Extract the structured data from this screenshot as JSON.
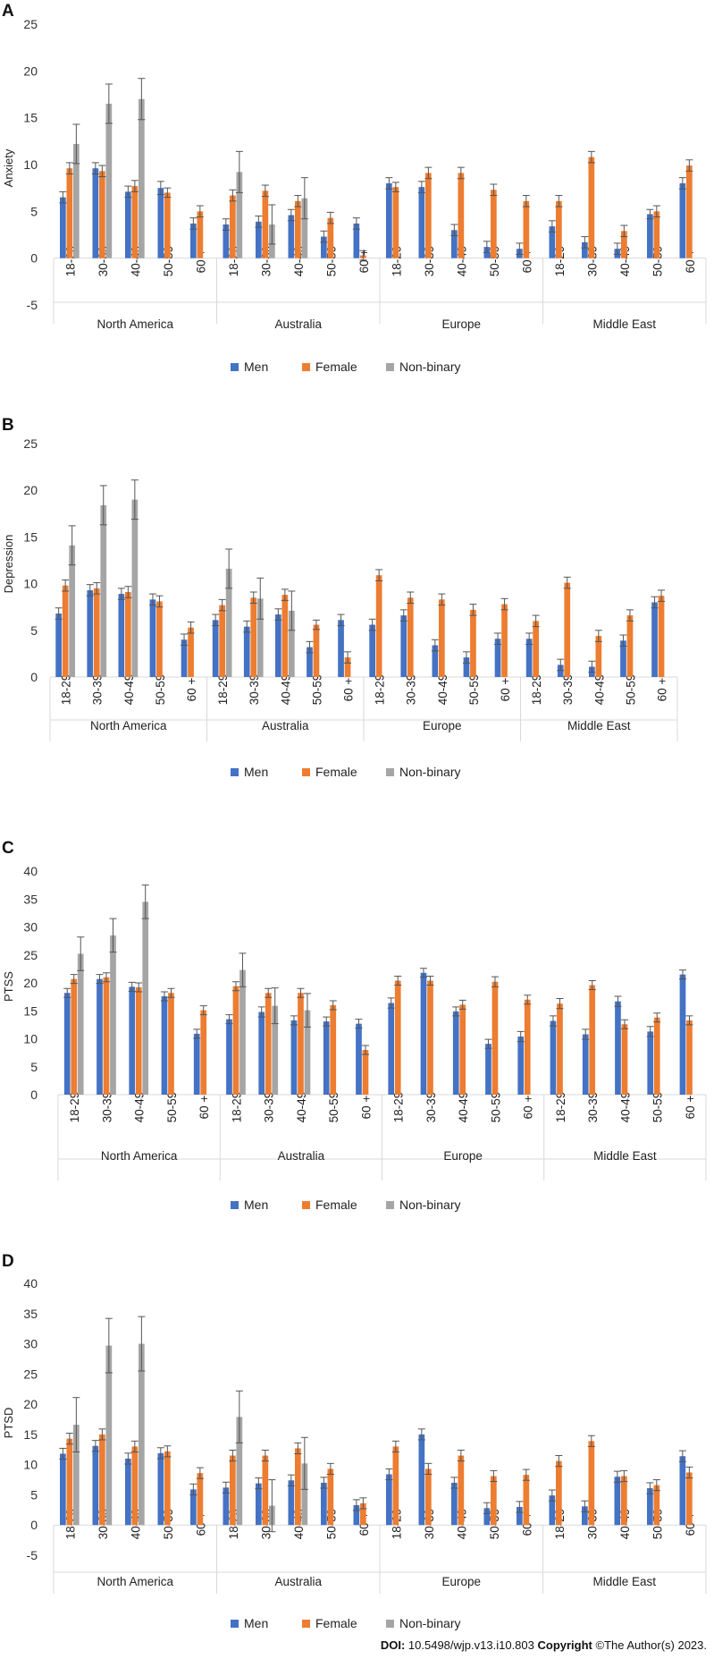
{
  "colors": {
    "Men": "#4472C4",
    "Female": "#ED7D31",
    "Non-binary": "#A5A5A5"
  },
  "footer": {
    "doi_label": "DOI:",
    "doi": "10.5498/wjp.v13.i10.803",
    "copyright_label": "Copyright",
    "copyright": "©The Author(s) 2023."
  },
  "chart_data": [
    {
      "panel": "A",
      "type": "bar",
      "ylabel": "Anxiety",
      "ylim": [
        -5,
        25
      ],
      "yticks": [
        -5,
        0,
        5,
        10,
        15,
        20,
        25
      ],
      "groups": [
        "North America",
        "Australia",
        "Europe",
        "Middle East"
      ],
      "categories": [
        "18-29",
        "30-39",
        "40-49",
        "50-59",
        "60 +"
      ],
      "legend": [
        "Men",
        "Female",
        "Non-binary"
      ],
      "series": [
        {
          "name": "Men",
          "values": [
            [
              6.5,
              9.6,
              7.1,
              7.5,
              3.7
            ],
            [
              3.6,
              3.9,
              4.6,
              2.3,
              3.7
            ],
            [
              8.0,
              7.6,
              3.0,
              1.2,
              1.0
            ],
            [
              3.4,
              1.7,
              1.0,
              4.7,
              8.0
            ]
          ],
          "errors": [
            [
              0.6,
              0.6,
              0.6,
              0.7,
              0.6
            ],
            [
              0.6,
              0.6,
              0.6,
              0.6,
              0.6
            ],
            [
              0.6,
              0.6,
              0.6,
              0.6,
              0.6
            ],
            [
              0.6,
              0.6,
              0.6,
              0.5,
              0.6
            ]
          ]
        },
        {
          "name": "Female",
          "values": [
            [
              9.6,
              9.3,
              7.7,
              7.0,
              5.0
            ],
            [
              6.7,
              7.2,
              6.1,
              4.3,
              0.3
            ],
            [
              7.6,
              9.1,
              9.1,
              7.3,
              6.1
            ],
            [
              6.1,
              10.8,
              2.9,
              5.0,
              9.9
            ]
          ],
          "errors": [
            [
              0.6,
              0.6,
              0.6,
              0.5,
              0.6
            ],
            [
              0.6,
              0.6,
              0.6,
              0.6,
              0.5
            ],
            [
              0.5,
              0.6,
              0.6,
              0.6,
              0.6
            ],
            [
              0.6,
              0.6,
              0.6,
              0.6,
              0.6
            ]
          ]
        },
        {
          "name": "Non-binary",
          "values": [
            [
              12.2,
              16.5,
              17.0,
              null,
              null
            ],
            [
              9.2,
              3.6,
              6.4,
              null,
              null
            ],
            [
              null,
              null,
              null,
              null,
              null
            ],
            [
              null,
              null,
              null,
              null,
              null
            ]
          ],
          "errors": [
            [
              2.1,
              2.1,
              2.2,
              null,
              null
            ],
            [
              2.2,
              2.1,
              2.2,
              null,
              null
            ],
            [
              null,
              null,
              null,
              null,
              null
            ],
            [
              null,
              null,
              null,
              null,
              null
            ]
          ]
        }
      ]
    },
    {
      "panel": "B",
      "type": "bar",
      "ylabel": "Depression",
      "ylim": [
        0,
        25
      ],
      "yticks": [
        0,
        5,
        10,
        15,
        20,
        25
      ],
      "groups": [
        "North America",
        "Australia",
        "Europe",
        "Middle East"
      ],
      "categories": [
        "18-29",
        "30-39",
        "40-49",
        "50-59",
        "60 +"
      ],
      "legend": [
        "Men",
        "Female",
        "Non-binary"
      ],
      "series": [
        {
          "name": "Men",
          "values": [
            [
              6.8,
              9.3,
              8.9,
              8.3,
              4.0
            ],
            [
              6.1,
              5.4,
              6.7,
              3.2,
              6.1
            ],
            [
              5.6,
              6.6,
              3.4,
              2.1,
              4.1
            ],
            [
              4.1,
              1.3,
              1.1,
              3.9,
              8.0
            ]
          ],
          "errors": [
            [
              0.6,
              0.6,
              0.6,
              0.6,
              0.6
            ],
            [
              0.6,
              0.6,
              0.6,
              0.6,
              0.6
            ],
            [
              0.6,
              0.6,
              0.6,
              0.6,
              0.6
            ],
            [
              0.6,
              0.6,
              0.6,
              0.6,
              0.6
            ]
          ]
        },
        {
          "name": "Female",
          "values": [
            [
              9.8,
              9.5,
              9.1,
              8.1,
              5.3
            ],
            [
              7.7,
              8.5,
              8.8,
              5.6,
              2.1
            ],
            [
              10.9,
              8.5,
              8.3,
              7.2,
              7.8
            ],
            [
              6.0,
              10.1,
              4.4,
              6.6,
              8.7
            ]
          ],
          "errors": [
            [
              0.6,
              0.6,
              0.6,
              0.6,
              0.6
            ],
            [
              0.6,
              0.6,
              0.6,
              0.5,
              0.6
            ],
            [
              0.6,
              0.6,
              0.6,
              0.6,
              0.6
            ],
            [
              0.6,
              0.6,
              0.6,
              0.6,
              0.6
            ]
          ]
        },
        {
          "name": "Non-binary",
          "values": [
            [
              14.1,
              18.4,
              19.0,
              null,
              null
            ],
            [
              11.6,
              8.4,
              7.1,
              null,
              null
            ],
            [
              null,
              null,
              null,
              null,
              null
            ],
            [
              null,
              null,
              null,
              null,
              null
            ]
          ],
          "errors": [
            [
              2.1,
              2.1,
              2.1,
              null,
              null
            ],
            [
              2.1,
              2.2,
              2.1,
              null,
              null
            ],
            [
              null,
              null,
              null,
              null,
              null
            ],
            [
              null,
              null,
              null,
              null,
              null
            ]
          ]
        }
      ]
    },
    {
      "panel": "C",
      "type": "bar",
      "ylabel": "PTSS",
      "ylim": [
        0,
        40
      ],
      "yticks": [
        0,
        5,
        10,
        15,
        20,
        25,
        30,
        35,
        40
      ],
      "groups": [
        "North America",
        "Australia",
        "Europe",
        "Middle East"
      ],
      "categories": [
        "18-29",
        "30-39",
        "40-49",
        "50-59",
        "60 +"
      ],
      "legend": [
        "Men",
        "Female",
        "Non-binary"
      ],
      "series": [
        {
          "name": "Men",
          "values": [
            [
              18.2,
              20.7,
              19.3,
              17.6,
              10.9
            ],
            [
              13.5,
              14.8,
              13.3,
              13.1,
              12.7
            ],
            [
              16.4,
              21.8,
              14.9,
              9.1,
              10.4
            ],
            [
              13.2,
              10.8,
              16.7,
              11.3,
              21.5
            ]
          ],
          "errors": [
            [
              0.8,
              0.8,
              0.8,
              0.8,
              0.8
            ],
            [
              0.8,
              0.9,
              0.8,
              0.8,
              0.8
            ],
            [
              0.9,
              0.8,
              0.8,
              0.8,
              0.9
            ],
            [
              0.9,
              0.9,
              0.9,
              0.9,
              0.8
            ]
          ]
        },
        {
          "name": "Female",
          "values": [
            [
              20.7,
              21.0,
              19.2,
              18.2,
              15.1
            ],
            [
              19.4,
              18.2,
              18.2,
              16.0,
              8.0
            ],
            [
              20.4,
              20.4,
              16.1,
              20.2,
              17.0
            ],
            [
              16.3,
              19.6,
              12.6,
              13.8,
              13.3
            ]
          ],
          "errors": [
            [
              0.8,
              0.8,
              0.8,
              0.8,
              0.8
            ],
            [
              0.8,
              0.8,
              0.8,
              0.8,
              0.8
            ],
            [
              0.8,
              0.8,
              0.8,
              0.9,
              0.8
            ],
            [
              0.9,
              0.8,
              0.8,
              0.8,
              0.8
            ]
          ]
        },
        {
          "name": "Non-binary",
          "values": [
            [
              25.2,
              28.5,
              34.5,
              null,
              null
            ],
            [
              22.3,
              15.9,
              15.1,
              null,
              null
            ],
            [
              null,
              null,
              null,
              null,
              null
            ],
            [
              null,
              null,
              null,
              null,
              null
            ]
          ],
          "errors": [
            [
              3.0,
              3.0,
              3.0,
              null,
              null
            ],
            [
              3.0,
              3.2,
              3.0,
              null,
              null
            ],
            [
              null,
              null,
              null,
              null,
              null
            ],
            [
              null,
              null,
              null,
              null,
              null
            ]
          ]
        }
      ]
    },
    {
      "panel": "D",
      "type": "bar",
      "ylabel": "PTSD",
      "ylim": [
        -5,
        40
      ],
      "yticks": [
        -5,
        0,
        5,
        10,
        15,
        20,
        25,
        30,
        35,
        40
      ],
      "groups": [
        "North America",
        "Australia",
        "Europe",
        "Middle East"
      ],
      "categories": [
        "18-29",
        "30-39",
        "40-49",
        "50-59",
        "60 +"
      ],
      "legend": [
        "Men",
        "Female",
        "Non-binary"
      ],
      "series": [
        {
          "name": "Men",
          "values": [
            [
              11.8,
              13.1,
              11.0,
              11.9,
              5.9
            ],
            [
              6.2,
              6.9,
              7.4,
              7.0,
              3.3
            ],
            [
              8.4,
              15.0,
              7.0,
              2.8,
              3.0
            ],
            [
              4.9,
              3.1,
              8.0,
              6.1,
              11.4
            ]
          ],
          "errors": [
            [
              0.9,
              0.9,
              0.9,
              0.9,
              0.9
            ],
            [
              0.9,
              0.9,
              0.9,
              0.9,
              0.9
            ],
            [
              0.9,
              0.9,
              0.9,
              0.9,
              0.9
            ],
            [
              0.9,
              0.9,
              0.9,
              0.9,
              0.9
            ]
          ]
        },
        {
          "name": "Female",
          "values": [
            [
              14.3,
              15.0,
              13.0,
              12.2,
              8.6
            ],
            [
              11.5,
              11.5,
              12.7,
              9.3,
              3.6
            ],
            [
              13.0,
              9.3,
              11.5,
              8.1,
              8.3
            ],
            [
              10.6,
              13.9,
              8.1,
              6.6,
              8.7
            ]
          ],
          "errors": [
            [
              0.9,
              0.9,
              0.9,
              0.9,
              0.9
            ],
            [
              0.9,
              0.9,
              0.9,
              0.9,
              0.9
            ],
            [
              0.9,
              0.9,
              0.9,
              0.9,
              0.9
            ],
            [
              0.9,
              0.9,
              0.9,
              0.9,
              0.9
            ]
          ]
        },
        {
          "name": "Non-binary",
          "values": [
            [
              16.6,
              29.7,
              30.0,
              null,
              null
            ],
            [
              17.9,
              3.2,
              10.2,
              null,
              null
            ],
            [
              null,
              null,
              null,
              null,
              null
            ],
            [
              null,
              null,
              null,
              null,
              null
            ]
          ],
          "errors": [
            [
              4.5,
              4.5,
              4.5,
              null,
              null
            ],
            [
              4.3,
              4.3,
              4.3,
              null,
              null
            ],
            [
              null,
              null,
              null,
              null,
              null
            ],
            [
              null,
              null,
              null,
              null,
              null
            ]
          ]
        }
      ]
    }
  ]
}
